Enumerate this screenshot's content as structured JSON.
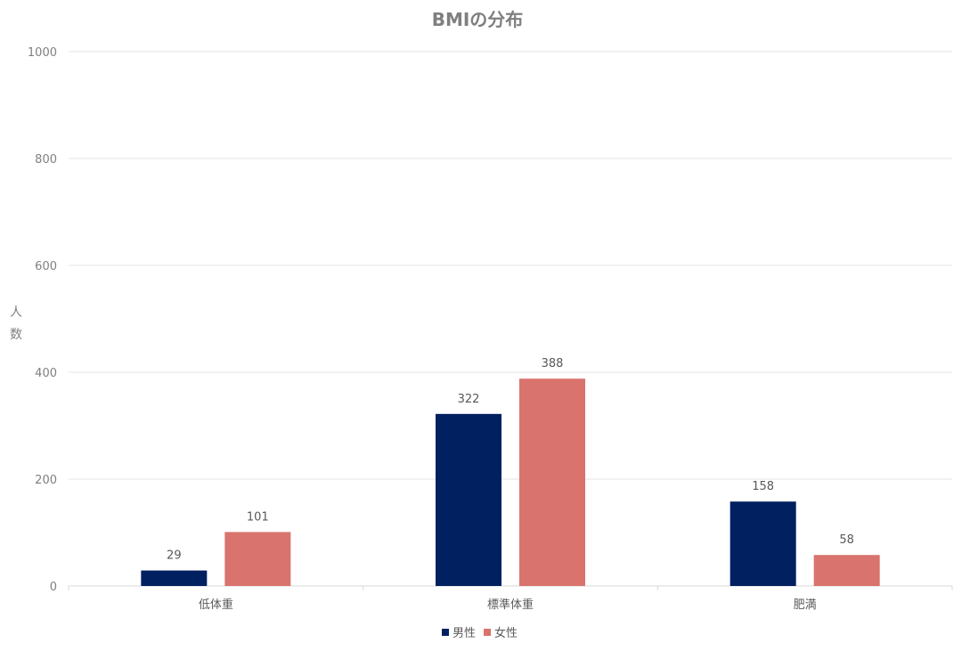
{
  "chart_data": {
    "type": "bar",
    "title": "BMIの分布",
    "xlabel": "",
    "ylabel": "人数",
    "ylabel_chars": [
      "人",
      "数"
    ],
    "categories": [
      "低体重",
      "標準体重",
      "肥満"
    ],
    "series": [
      {
        "name": "男性",
        "color": "#002060",
        "values": [
          29,
          322,
          158
        ]
      },
      {
        "name": "女性",
        "color": "#D9736D",
        "values": [
          101,
          388,
          58
        ]
      }
    ],
    "ylim": [
      0,
      1000
    ],
    "yticks": [
      0,
      200,
      400,
      600,
      800,
      1000
    ],
    "grid": true,
    "legend_position": "bottom"
  }
}
